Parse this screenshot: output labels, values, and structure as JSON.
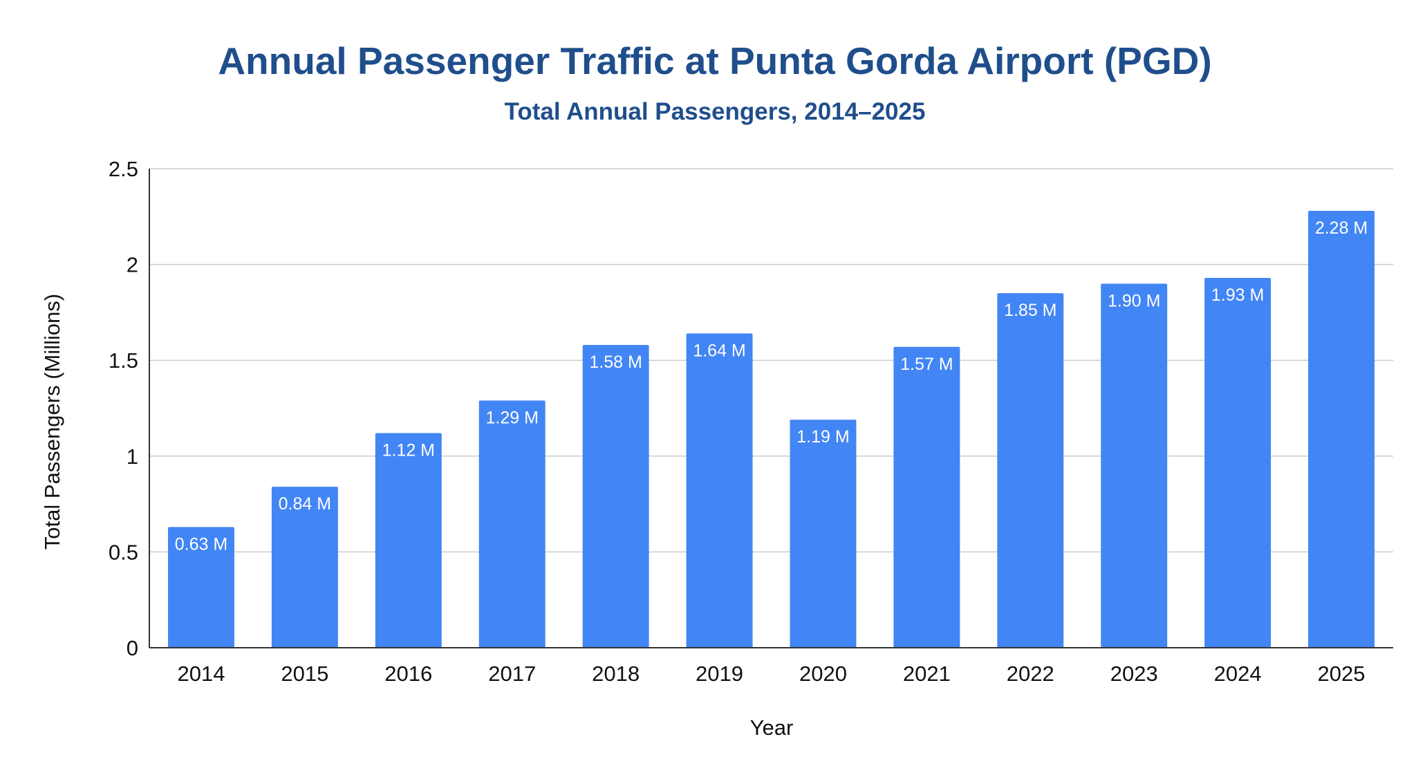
{
  "chart_data": {
    "type": "bar",
    "title": "Annual Passenger Traffic at Punta Gorda Airport (PGD)",
    "subtitle": "Total Annual Passengers, 2014–2025",
    "xlabel": "Year",
    "ylabel": "Total Passengers (Millions)",
    "categories": [
      "2014",
      "2015",
      "2016",
      "2017",
      "2018",
      "2019",
      "2020",
      "2021",
      "2022",
      "2023",
      "2024",
      "2025"
    ],
    "values": [
      0.63,
      0.84,
      1.12,
      1.29,
      1.58,
      1.64,
      1.19,
      1.57,
      1.85,
      1.9,
      1.93,
      2.28
    ],
    "data_labels": [
      "0.63 M",
      "0.84 M",
      "1.12 M",
      "1.29 M",
      "1.58 M",
      "1.64 M",
      "1.19 M",
      "1.57 M",
      "1.85 M",
      "1.90 M",
      "1.93 M",
      "2.28 M"
    ],
    "yticks": [
      "0",
      "0.5",
      "1",
      "1.5",
      "2",
      "2.5"
    ],
    "ylim": [
      0,
      2.5
    ],
    "grid": true,
    "legend": "none",
    "bar_color": "#4285f4",
    "title_color": "#1f4e8c"
  }
}
